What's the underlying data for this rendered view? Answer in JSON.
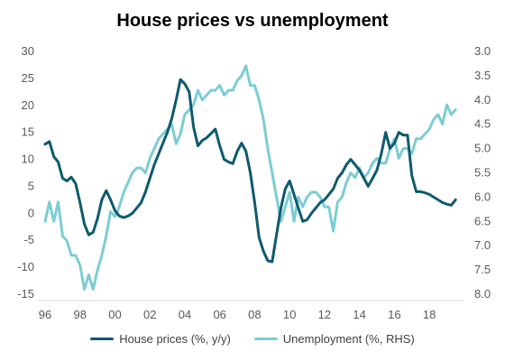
{
  "chart_data": {
    "type": "line",
    "title": "House prices vs unemployment",
    "x_tick_labels": [
      "96",
      "98",
      "00",
      "02",
      "04",
      "06",
      "08",
      "10",
      "12",
      "14",
      "16",
      "18"
    ],
    "x_tick_values": [
      1996,
      1998,
      2000,
      2002,
      2004,
      2006,
      2008,
      2010,
      2012,
      2014,
      2016,
      2018
    ],
    "xlim": [
      1996,
      2019.75
    ],
    "ylim_left": [
      -15,
      30
    ],
    "y_left_ticks": [
      30,
      25,
      20,
      15,
      10,
      5,
      0,
      -5,
      -10,
      -15
    ],
    "ylim_right": [
      8.0,
      3.0
    ],
    "y_right_ticks": [
      "3.0",
      "3.5",
      "4.0",
      "4.5",
      "5.0",
      "5.5",
      "6.0",
      "6.5",
      "7.0",
      "7.5",
      "8.0"
    ],
    "right_axis_inverted": true,
    "grid": false,
    "legend_position": "bottom",
    "series": [
      {
        "name": "House prices (%, y/y)",
        "axis": "left",
        "color": "#0e5a6e",
        "x": [
          1996.0,
          1996.25,
          1996.5,
          1996.75,
          1997.0,
          1997.25,
          1997.5,
          1997.75,
          1998.0,
          1998.25,
          1998.5,
          1998.75,
          1999.0,
          1999.25,
          1999.5,
          1999.75,
          2000.0,
          2000.25,
          2000.5,
          2000.75,
          2001.0,
          2001.25,
          2001.5,
          2001.75,
          2002.0,
          2002.25,
          2002.5,
          2002.75,
          2003.0,
          2003.25,
          2003.5,
          2003.75,
          2004.0,
          2004.25,
          2004.5,
          2004.75,
          2005.0,
          2005.25,
          2005.5,
          2005.75,
          2006.0,
          2006.25,
          2006.5,
          2006.75,
          2007.0,
          2007.25,
          2007.5,
          2007.75,
          2008.0,
          2008.25,
          2008.5,
          2008.75,
          2009.0,
          2009.25,
          2009.5,
          2009.75,
          2010.0,
          2010.25,
          2010.5,
          2010.75,
          2011.0,
          2011.25,
          2011.5,
          2011.75,
          2012.0,
          2012.25,
          2012.5,
          2012.75,
          2013.0,
          2013.25,
          2013.5,
          2013.75,
          2014.0,
          2014.25,
          2014.5,
          2014.75,
          2015.0,
          2015.25,
          2015.5,
          2015.75,
          2016.0,
          2016.25,
          2016.5,
          2016.75,
          2017.0,
          2017.25,
          2017.5,
          2017.75,
          2018.0,
          2018.25,
          2018.5,
          2018.75,
          2019.0,
          2019.25,
          2019.5
        ],
        "values": [
          12.8,
          13.3,
          10.5,
          9.5,
          6.5,
          6,
          6.7,
          5.5,
          2,
          -2,
          -4,
          -3.5,
          -1,
          2.5,
          4.2,
          2.5,
          0.5,
          -0.5,
          -0.8,
          -0.5,
          0,
          1,
          2,
          4,
          6.5,
          9,
          11,
          13,
          15,
          17.5,
          21,
          24.8,
          24,
          22.5,
          16,
          12.5,
          13.5,
          14,
          14.8,
          15.6,
          12.5,
          10,
          9.5,
          9.2,
          11.5,
          13,
          11.5,
          7.5,
          2,
          -4.5,
          -7,
          -8.8,
          -9,
          -4,
          1,
          4.5,
          6,
          3.5,
          1,
          -1.5,
          -1.2,
          0,
          1,
          2,
          2.5,
          3.5,
          4.5,
          6.5,
          7.5,
          9,
          10,
          9,
          8,
          6.5,
          5,
          6.5,
          8,
          11,
          15,
          12,
          13,
          15,
          14.5,
          14.5,
          7,
          4,
          4,
          3.8,
          3.5,
          3,
          2.5,
          2,
          1.7,
          1.5,
          2.5
        ]
      },
      {
        "name": "Unemployment (%, RHS)",
        "axis": "right",
        "color": "#7ccdd3",
        "x": [
          1996.0,
          1996.25,
          1996.5,
          1996.75,
          1997.0,
          1997.25,
          1997.5,
          1997.75,
          1998.0,
          1998.25,
          1998.5,
          1998.75,
          1999.0,
          1999.25,
          1999.5,
          1999.75,
          2000.0,
          2000.25,
          2000.5,
          2000.75,
          2001.0,
          2001.25,
          2001.5,
          2001.75,
          2002.0,
          2002.25,
          2002.5,
          2002.75,
          2003.0,
          2003.25,
          2003.5,
          2003.75,
          2004.0,
          2004.25,
          2004.5,
          2004.75,
          2005.0,
          2005.25,
          2005.5,
          2005.75,
          2006.0,
          2006.25,
          2006.5,
          2006.75,
          2007.0,
          2007.25,
          2007.5,
          2007.75,
          2008.0,
          2008.25,
          2008.5,
          2008.75,
          2009.0,
          2009.25,
          2009.5,
          2009.75,
          2010.0,
          2010.25,
          2010.5,
          2010.75,
          2011.0,
          2011.25,
          2011.5,
          2011.75,
          2012.0,
          2012.25,
          2012.5,
          2012.75,
          2013.0,
          2013.25,
          2013.5,
          2013.75,
          2014.0,
          2014.25,
          2014.5,
          2014.75,
          2015.0,
          2015.25,
          2015.5,
          2015.75,
          2016.0,
          2016.25,
          2016.5,
          2016.75,
          2017.0,
          2017.25,
          2017.5,
          2017.75,
          2018.0,
          2018.25,
          2018.5,
          2018.75,
          2019.0,
          2019.25,
          2019.5
        ],
        "values": [
          6.5,
          6.1,
          6.5,
          6.1,
          6.8,
          6.9,
          7.2,
          7.2,
          7.4,
          7.9,
          7.6,
          7.9,
          7.5,
          7.2,
          6.8,
          6.3,
          6.4,
          6.2,
          5.9,
          5.7,
          5.5,
          5.4,
          5.4,
          5.5,
          5.2,
          5.0,
          4.8,
          4.7,
          4.6,
          4.5,
          4.9,
          4.7,
          4.3,
          4.2,
          4.1,
          3.8,
          4.0,
          3.9,
          3.8,
          3.8,
          3.7,
          3.9,
          3.8,
          3.8,
          3.6,
          3.5,
          3.3,
          3.7,
          3.7,
          4.0,
          4.4,
          5.0,
          5.5,
          6.0,
          6.5,
          6.2,
          5.9,
          6.5,
          6.0,
          6.2,
          6.0,
          5.9,
          5.9,
          6.0,
          6.2,
          6.2,
          6.7,
          6.1,
          6.0,
          5.7,
          5.5,
          5.6,
          5.4,
          5.6,
          5.5,
          5.3,
          5.2,
          5.3,
          5.3,
          5.0,
          4.8,
          5.2,
          5.0,
          5.0,
          5.1,
          4.8,
          4.8,
          4.7,
          4.6,
          4.4,
          4.3,
          4.5,
          4.1,
          4.3,
          4.2
        ]
      }
    ]
  }
}
